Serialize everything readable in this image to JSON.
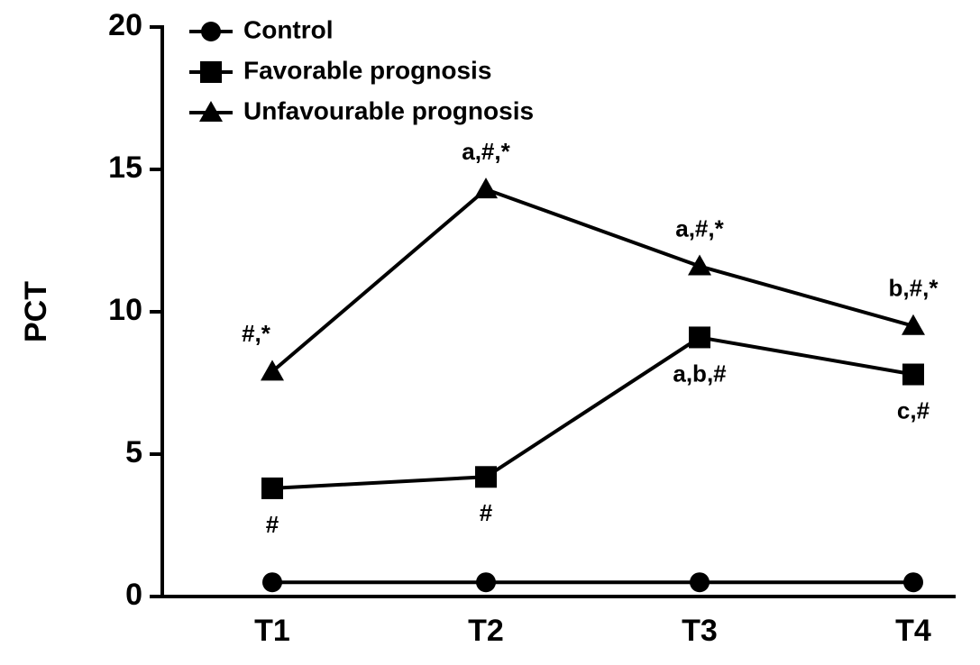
{
  "chart_data": {
    "type": "line",
    "y_label": "PCT",
    "categories": [
      "T1",
      "T2",
      "T3",
      "T4"
    ],
    "ylim": [
      0,
      20
    ],
    "yticks": [
      0,
      5,
      10,
      15,
      20
    ],
    "series": [
      {
        "name": "Control",
        "color": "#000000",
        "marker": "circle",
        "values": [
          0.5,
          0.5,
          0.5,
          0.5
        ]
      },
      {
        "name": "Favorable prognosis",
        "color": "#000000",
        "marker": "square",
        "values": [
          3.8,
          4.2,
          9.1,
          7.8
        ],
        "point_labels": [
          "#",
          "#",
          "a,b,#",
          "c,#"
        ]
      },
      {
        "name": "Unfavourable prognosis",
        "color": "#000000",
        "marker": "triangle",
        "values": [
          7.9,
          14.3,
          11.6,
          9.5
        ],
        "point_labels": [
          "#,*",
          "a,#,*",
          "a,#,*",
          "b,#,*"
        ]
      }
    ]
  }
}
